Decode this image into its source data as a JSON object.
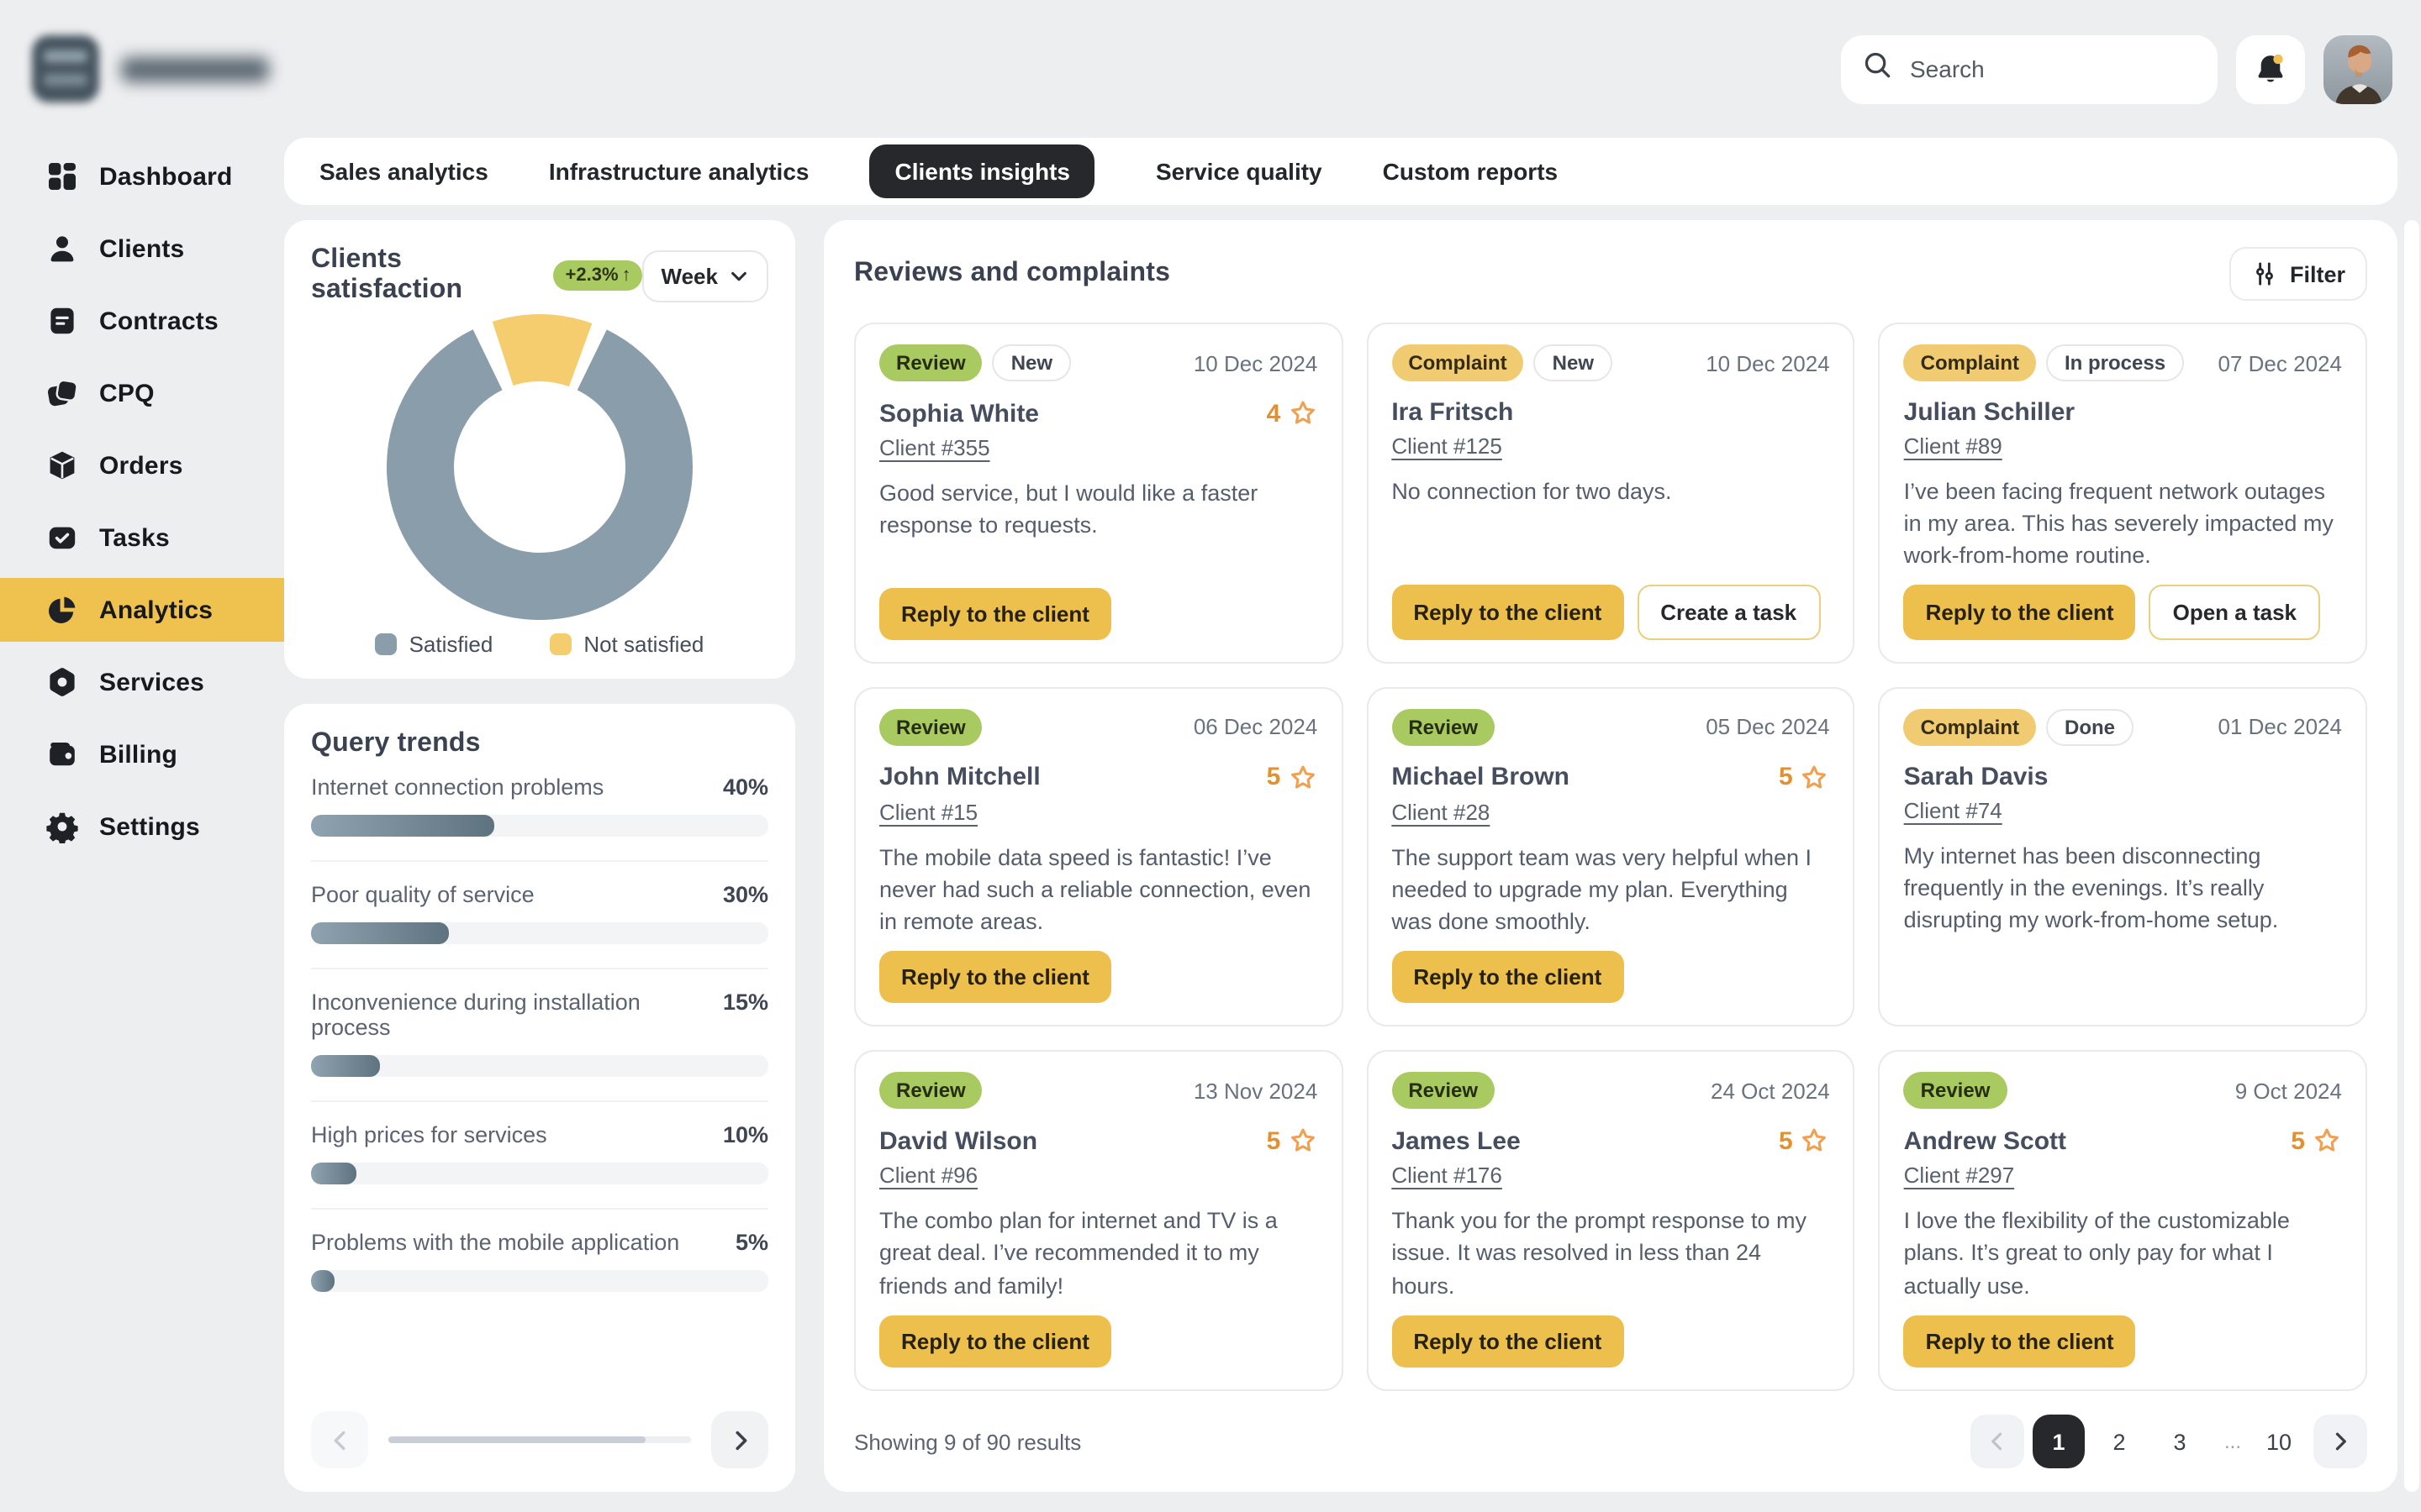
{
  "header": {
    "search_placeholder": "Search"
  },
  "sidebar": {
    "items": [
      {
        "label": "Dashboard",
        "icon": "dashboard-icon",
        "active": false
      },
      {
        "label": "Clients",
        "icon": "clients-icon",
        "active": false
      },
      {
        "label": "Contracts",
        "icon": "contracts-icon",
        "active": false
      },
      {
        "label": "CPQ",
        "icon": "cpq-icon",
        "active": false
      },
      {
        "label": "Orders",
        "icon": "orders-icon",
        "active": false
      },
      {
        "label": "Tasks",
        "icon": "tasks-icon",
        "active": false
      },
      {
        "label": "Analytics",
        "icon": "analytics-icon",
        "active": true
      },
      {
        "label": "Services",
        "icon": "services-icon",
        "active": false
      },
      {
        "label": "Billing",
        "icon": "billing-icon",
        "active": false
      },
      {
        "label": "Settings",
        "icon": "settings-icon",
        "active": false
      }
    ]
  },
  "tabs": [
    {
      "label": "Sales analytics",
      "active": false
    },
    {
      "label": "Infrastructure analytics",
      "active": false
    },
    {
      "label": "Clients insights",
      "active": true
    },
    {
      "label": "Service quality",
      "active": false
    },
    {
      "label": "Custom reports",
      "active": false
    }
  ],
  "satisfaction": {
    "title": "Clients satisfaction",
    "change_badge": "+2.3%",
    "change_arrow": "↑",
    "period": "Week",
    "colors": {
      "satisfied": "#8A9DAB",
      "not_satisfied": "#F5CD6E"
    },
    "legend": [
      {
        "label": "Satisfied",
        "color": "#8A9DAB"
      },
      {
        "label": "Not satisfied",
        "color": "#F5CD6E"
      }
    ]
  },
  "trends": {
    "title": "Query trends",
    "rows": [
      {
        "label": "Internet connection problems",
        "value": "40%",
        "pct": 40
      },
      {
        "label": "Poor quality of service",
        "value": "30%",
        "pct": 30
      },
      {
        "label": "Inconvenience during installation process",
        "value": "15%",
        "pct": 15
      },
      {
        "label": "High prices for services",
        "value": "10%",
        "pct": 10
      },
      {
        "label": "Problems with the mobile application",
        "value": "5%",
        "pct": 5
      }
    ]
  },
  "reviews": {
    "title": "Reviews and complaints",
    "filter_label": "Filter",
    "cards": [
      {
        "type": "Review",
        "status": "New",
        "date": "10 Dec 2024",
        "name": "Sophia White",
        "rating": "4",
        "client": "Client #355",
        "text": "Good service, but I would like a faster response to requests.",
        "primary_button": "Reply to the client",
        "secondary_button": null
      },
      {
        "type": "Complaint",
        "status": "New",
        "date": "10 Dec 2024",
        "name": "Ira Fritsch",
        "rating": null,
        "client": "Client #125",
        "text": "No connection for two days.",
        "primary_button": "Reply to the client",
        "secondary_button": "Create a task"
      },
      {
        "type": "Complaint",
        "status": "In process",
        "date": "07 Dec 2024",
        "name": "Julian Schiller",
        "rating": null,
        "client": "Client #89",
        "text": "I’ve been facing frequent network outages in my area. This has severely impacted my work-from-home routine.",
        "primary_button": "Reply to the client",
        "secondary_button": "Open a task"
      },
      {
        "type": "Review",
        "status": null,
        "date": "06 Dec 2024",
        "name": "John Mitchell",
        "rating": "5",
        "client": "Client #15",
        "text": "The mobile data speed is fantastic! I’ve never had such a reliable connection, even in remote areas.",
        "primary_button": "Reply to the client",
        "secondary_button": null
      },
      {
        "type": "Review",
        "status": null,
        "date": "05 Dec 2024",
        "name": "Michael Brown",
        "rating": "5",
        "client": "Client #28",
        "text": "The support team was very helpful when I needed to upgrade my plan. Everything was done smoothly.",
        "primary_button": "Reply to the client",
        "secondary_button": null
      },
      {
        "type": "Complaint",
        "status": "Done",
        "date": "01 Dec 2024",
        "name": "Sarah Davis",
        "rating": null,
        "client": "Client #74",
        "text": "My internet has been disconnecting frequently in the evenings. It’s really disrupting my work-from-home setup.",
        "primary_button": null,
        "secondary_button": null
      },
      {
        "type": "Review",
        "status": null,
        "date": "13 Nov 2024",
        "name": "David Wilson",
        "rating": "5",
        "client": "Client #96",
        "text": "The combo plan for internet and TV is a great deal. I’ve recommended it to my friends and family!",
        "primary_button": "Reply to the client",
        "secondary_button": null
      },
      {
        "type": "Review",
        "status": null,
        "date": "24 Oct 2024",
        "name": "James Lee",
        "rating": "5",
        "client": "Client #176",
        "text": "Thank you for the prompt response to my issue. It was resolved in less than 24 hours.",
        "primary_button": "Reply to the client",
        "secondary_button": null
      },
      {
        "type": "Review",
        "status": null,
        "date": "9 Oct 2024",
        "name": "Andrew Scott",
        "rating": "5",
        "client": "Client #297",
        "text": "I love the flexibility of the customizable plans. It’s great to only pay for what I actually use.",
        "primary_button": "Reply to the client",
        "secondary_button": null
      }
    ],
    "footer": {
      "summary": "Showing 9 of 90 results",
      "pages": [
        "1",
        "2",
        "3",
        "...",
        "10"
      ],
      "active_page": "1"
    }
  },
  "chart_data": [
    {
      "type": "pie",
      "title": "Clients satisfaction",
      "series": [
        {
          "name": "Satisfied",
          "value": 90
        },
        {
          "name": "Not satisfied",
          "value": 10
        }
      ],
      "unit": "%",
      "legend_position": "bottom",
      "change_badge": "+2.3% ↑",
      "period_selector": "Week"
    },
    {
      "type": "bar",
      "title": "Query trends",
      "categories": [
        "Internet connection problems",
        "Poor quality of service",
        "Inconvenience during installation process",
        "High prices for services",
        "Problems with the mobile application"
      ],
      "values": [
        40,
        30,
        15,
        10,
        5
      ],
      "unit": "%",
      "xlim": [
        0,
        100
      ]
    }
  ],
  "colors": {
    "accent_yellow": "#EDBF4D",
    "sidebar_active_yellow": "#EFC24F",
    "badge_green": "#A9CA60",
    "badge_yellow": "#F1CB72",
    "star_orange": "#F0A052",
    "active_dark": "#26282B",
    "page_bg": "#EDEEF0"
  }
}
